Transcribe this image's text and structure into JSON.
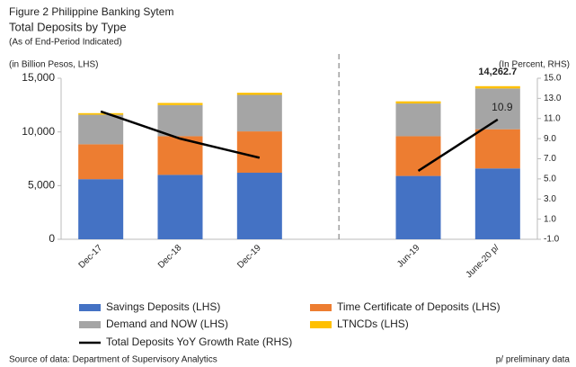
{
  "chart_data": {
    "type": "stacked_bar_line",
    "title": "Figure 2 Philippine Banking Sytem",
    "subtitle": "Total Deposits by Type",
    "note": "(As of End-Period Indicated)",
    "ylabel": "(in Billion Pesos, LHS)",
    "y2label": "(In Percent, RHS)",
    "source": "Source of data: Department of Supervisory Analytics",
    "footnote": "p/ preliminary data",
    "annotations": [
      "14,262.7"
    ],
    "categories": [
      "Dec-17",
      "Dec-18",
      "Dec-19",
      null,
      "Jun-19",
      "June-20 p/"
    ],
    "series": [
      {
        "name": "Savings Deposits (LHS)",
        "color": "#4472c4",
        "values": [
          5600,
          6000,
          6200,
          null,
          5900,
          6600
        ]
      },
      {
        "name": "Time Certificate of Deposits (LHS)",
        "color": "#ed7d31",
        "values": [
          3250,
          3600,
          3850,
          null,
          3700,
          3650
        ]
      },
      {
        "name": "Demand and NOW (LHS)",
        "color": "#a5a5a5",
        "values": [
          2750,
          2900,
          3400,
          null,
          3050,
          3800
        ]
      },
      {
        "name": "LTNCDs (LHS)",
        "color": "#ffc000",
        "values": [
          150,
          200,
          200,
          null,
          200,
          212.7
        ]
      },
      {
        "name": "Total Deposits YoY Growth Rate (RHS)",
        "color": "#000000",
        "axis": "y2",
        "values": [
          11.7,
          9.0,
          7.1,
          null,
          5.8,
          10.9
        ],
        "value_labels": [
          null,
          null,
          null,
          null,
          null,
          "10.9"
        ]
      }
    ],
    "ylim": [
      0,
      15000
    ],
    "yticks": [
      0,
      {
        "value": 5000,
        "label": "5,000"
      },
      {
        "value": 10000,
        "label": "10,000"
      },
      {
        "value": 15000,
        "label": "15,000"
      }
    ],
    "y2lim": [
      -1,
      15
    ],
    "y2ticks": [
      {
        "value": -1,
        "label": "-1.0"
      },
      {
        "value": 1,
        "label": "1.0"
      },
      {
        "value": 3,
        "label": "3.0"
      },
      {
        "value": 5,
        "label": "5.0"
      },
      {
        "value": 7,
        "label": "7.0"
      },
      {
        "value": 9,
        "label": "9.0"
      },
      {
        "value": 11,
        "label": "11.0"
      },
      {
        "value": 13,
        "label": "13.0"
      },
      {
        "value": 15,
        "label": "15.0"
      }
    ],
    "legend": "bottom"
  }
}
